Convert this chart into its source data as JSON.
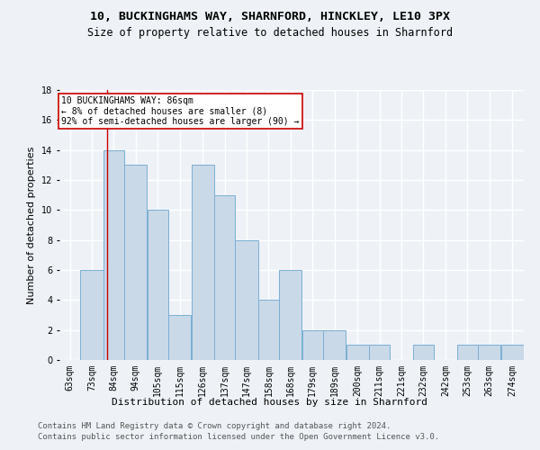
{
  "title1": "10, BUCKINGHAMS WAY, SHARNFORD, HINCKLEY, LE10 3PX",
  "title2": "Size of property relative to detached houses in Sharnford",
  "xlabel": "Distribution of detached houses by size in Sharnford",
  "ylabel": "Number of detached properties",
  "footer1": "Contains HM Land Registry data © Crown copyright and database right 2024.",
  "footer2": "Contains public sector information licensed under the Open Government Licence v3.0.",
  "bins": [
    63,
    73,
    84,
    94,
    105,
    115,
    126,
    137,
    147,
    158,
    168,
    179,
    189,
    200,
    211,
    221,
    232,
    242,
    253,
    263,
    274
  ],
  "values": [
    0,
    6,
    14,
    13,
    10,
    3,
    13,
    11,
    8,
    4,
    6,
    2,
    2,
    1,
    1,
    0,
    1,
    0,
    1,
    1,
    1
  ],
  "bar_color": "#c9d9e8",
  "bar_edge_color": "#7bafd4",
  "annotation_text": "10 BUCKINGHAMS WAY: 86sqm\n← 8% of detached houses are smaller (8)\n92% of semi-detached houses are larger (90) →",
  "vline_x": 86,
  "vline_color": "#cc0000",
  "annotation_box_facecolor": "#ffffff",
  "annotation_box_edgecolor": "#cc0000",
  "ylim": [
    0,
    18
  ],
  "yticks": [
    0,
    2,
    4,
    6,
    8,
    10,
    12,
    14,
    16,
    18
  ],
  "background_color": "#eef2f7",
  "grid_color": "#ffffff",
  "title1_fontsize": 9.5,
  "title2_fontsize": 8.5,
  "xlabel_fontsize": 8,
  "ylabel_fontsize": 8,
  "tick_fontsize": 7,
  "annotation_fontsize": 7,
  "footer_fontsize": 6.5
}
